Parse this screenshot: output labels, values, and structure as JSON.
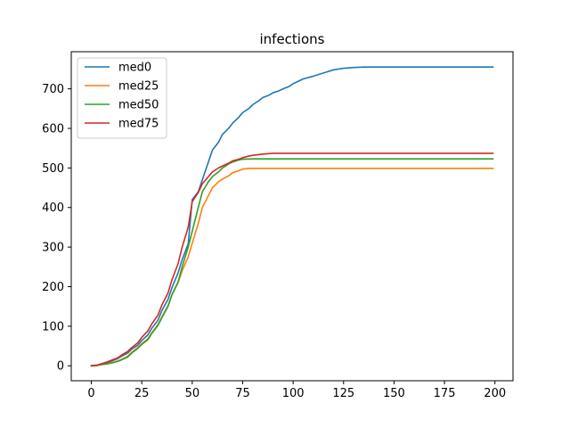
{
  "chart_data": {
    "type": "line",
    "title": "infections",
    "xlabel": "",
    "ylabel": "",
    "xlim": [
      -9.95,
      208.95
    ],
    "ylim": [
      -37.8,
      793.8
    ],
    "xticks": [
      0,
      25,
      50,
      75,
      100,
      125,
      150,
      175,
      200
    ],
    "yticks": [
      0,
      100,
      200,
      300,
      400,
      500,
      600,
      700
    ],
    "grid": false,
    "legend_position": "upper-left",
    "series": [
      {
        "name": "med0",
        "color": "#1f77b4",
        "x": [
          0,
          3,
          5,
          8,
          10,
          13,
          15,
          18,
          20,
          23,
          25,
          28,
          30,
          33,
          35,
          38,
          40,
          43,
          45,
          48,
          50,
          53,
          55,
          58,
          60,
          63,
          65,
          68,
          70,
          73,
          75,
          78,
          80,
          83,
          85,
          88,
          90,
          93,
          95,
          98,
          100,
          105,
          110,
          115,
          120,
          125,
          130,
          135,
          140,
          150,
          160,
          170,
          180,
          190,
          199
        ],
        "y": [
          0,
          1,
          5,
          8,
          12,
          18,
          24,
          32,
          42,
          52,
          64,
          78,
          95,
          115,
          140,
          168,
          198,
          235,
          268,
          308,
          420,
          440,
          470,
          515,
          545,
          565,
          585,
          600,
          613,
          628,
          640,
          650,
          660,
          670,
          678,
          684,
          690,
          695,
          700,
          706,
          713,
          725,
          732,
          740,
          748,
          752,
          754,
          755,
          755,
          755,
          755,
          755,
          755,
          755,
          755
        ]
      },
      {
        "name": "med25",
        "color": "#ff7f0e",
        "x": [
          0,
          3,
          5,
          8,
          10,
          13,
          15,
          18,
          20,
          23,
          25,
          28,
          30,
          33,
          35,
          38,
          40,
          43,
          45,
          48,
          50,
          53,
          55,
          58,
          60,
          63,
          65,
          68,
          70,
          73,
          75,
          78,
          80,
          85,
          90,
          100,
          110,
          120,
          130,
          140,
          150,
          160,
          170,
          180,
          190,
          199
        ],
        "y": [
          0,
          1,
          3,
          5,
          8,
          12,
          16,
          24,
          34,
          46,
          56,
          68,
          84,
          104,
          124,
          152,
          180,
          210,
          240,
          275,
          310,
          360,
          400,
          430,
          450,
          465,
          472,
          480,
          488,
          493,
          497,
          499,
          499,
          499,
          499,
          499,
          499,
          499,
          499,
          499,
          499,
          499,
          499,
          499,
          499,
          499
        ]
      },
      {
        "name": "med50",
        "color": "#2ca02c",
        "x": [
          0,
          3,
          5,
          8,
          10,
          13,
          15,
          18,
          20,
          23,
          25,
          28,
          30,
          33,
          35,
          38,
          40,
          43,
          45,
          48,
          50,
          53,
          55,
          58,
          60,
          63,
          65,
          68,
          70,
          73,
          75,
          80,
          90,
          100,
          110,
          120,
          130,
          140,
          150,
          160,
          170,
          180,
          190,
          199
        ],
        "y": [
          0,
          1,
          3,
          5,
          7,
          11,
          15,
          22,
          32,
          44,
          54,
          66,
          82,
          102,
          122,
          150,
          180,
          212,
          250,
          300,
          340,
          400,
          440,
          465,
          478,
          490,
          500,
          510,
          515,
          520,
          522,
          523,
          523,
          523,
          523,
          523,
          523,
          523,
          523,
          523,
          523,
          523,
          523,
          523
        ]
      },
      {
        "name": "med75",
        "color": "#d62728",
        "x": [
          0,
          3,
          5,
          8,
          10,
          13,
          15,
          18,
          20,
          23,
          25,
          28,
          30,
          33,
          35,
          38,
          40,
          43,
          45,
          48,
          50,
          53,
          55,
          58,
          60,
          63,
          65,
          68,
          70,
          73,
          75,
          78,
          80,
          85,
          90,
          100,
          110,
          120,
          130,
          140,
          150,
          160,
          170,
          180,
          190,
          199
        ],
        "y": [
          0,
          2,
          5,
          10,
          14,
          20,
          27,
          36,
          46,
          58,
          72,
          88,
          106,
          128,
          154,
          184,
          218,
          258,
          300,
          350,
          415,
          438,
          460,
          478,
          490,
          500,
          505,
          512,
          518,
          522,
          526,
          530,
          532,
          535,
          537,
          537,
          537,
          537,
          537,
          537,
          537,
          537,
          537,
          537,
          537,
          537
        ]
      }
    ]
  }
}
